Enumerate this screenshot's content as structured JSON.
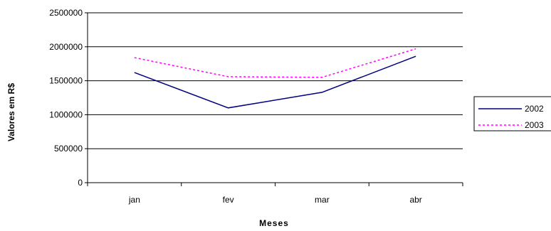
{
  "chart_data": {
    "type": "line",
    "title": "",
    "xlabel": "Meses",
    "ylabel": "Valores em R$",
    "categories": [
      "jan",
      "fev",
      "mar",
      "abr"
    ],
    "ylim": [
      0,
      2500000
    ],
    "yticks": [
      0,
      500000,
      1000000,
      1500000,
      2000000,
      2500000
    ],
    "ytick_labels": [
      "0",
      "500000",
      "1000000",
      "1500000",
      "2000000",
      "2500000"
    ],
    "grid": "horizontal",
    "legend_position": "right",
    "series": [
      {
        "name": "2002",
        "values": [
          1620000,
          1100000,
          1330000,
          1860000
        ],
        "color": "#000080",
        "style": "solid"
      },
      {
        "name": "2003",
        "values": [
          1840000,
          1560000,
          1550000,
          1970000
        ],
        "color": "#ff00ff",
        "style": "dotted"
      }
    ]
  }
}
